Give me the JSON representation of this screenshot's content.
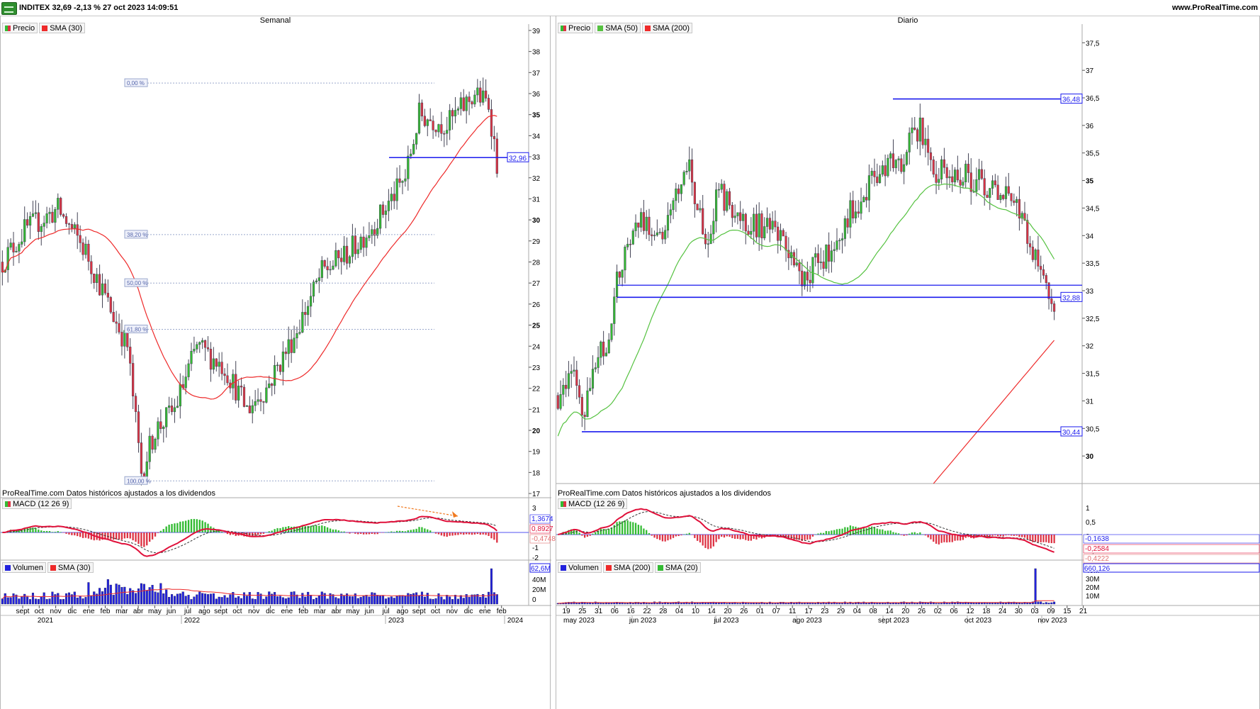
{
  "header": {
    "title": "INDITEX 32,69 -2,13 % 27 oct 2023 14:09:51",
    "site": "www.ProRealTime.com"
  },
  "colors": {
    "up": "#33bb33",
    "down": "#dd3344",
    "sma": "#ee2a2a",
    "sma50": "#55c240",
    "level": "#1a1aee",
    "fib": "#9aa7cc",
    "vol": "#2222dd"
  },
  "note": "ProRealTime.com Datos históricos ajustados a los dividendos",
  "weekly": {
    "title": "Semanal",
    "legend": [
      "Precio",
      "SMA (30)"
    ],
    "price_ticks": [
      "39",
      "38",
      "37",
      "36",
      "35",
      "34",
      "33",
      "32",
      "31",
      "30",
      "29",
      "28",
      "27",
      "26",
      "25",
      "24",
      "23",
      "22",
      "21",
      "20",
      "19",
      "18",
      "17"
    ],
    "fib": [
      {
        "label": "0,00 %",
        "value": 36.5
      },
      {
        "label": "38,20 %",
        "value": 29.3
      },
      {
        "label": "50,00 %",
        "value": 27.0
      },
      {
        "label": "61,80 %",
        "value": 24.8
      },
      {
        "label": "100,00 %",
        "value": 17.6
      }
    ],
    "level": {
      "label": "32,96",
      "value": 32.96
    },
    "macd": {
      "legend": "MACD (12 26 9)",
      "ticks": [
        "3",
        "2",
        "1",
        "0",
        "-1",
        "-2"
      ],
      "values": [
        "1,3674",
        "0,8927",
        "-0,4748"
      ]
    },
    "volume": {
      "legend": [
        "Volumen",
        "SMA (30)"
      ],
      "ticks": [
        "40M",
        "20M",
        "0"
      ],
      "value": "62,6M"
    },
    "month_labels": [
      "sept",
      "oct",
      "nov",
      "dic",
      "ene",
      "feb",
      "mar",
      "abr",
      "may",
      "jun",
      "jul",
      "ago",
      "sept",
      "oct",
      "nov",
      "dic",
      "ene",
      "feb",
      "mar",
      "abr",
      "may",
      "jun",
      "jul",
      "ago",
      "sept",
      "oct",
      "nov",
      "dic",
      "ene",
      "feb"
    ],
    "years": [
      "2021",
      "2022",
      "2023",
      "2024"
    ]
  },
  "daily": {
    "title": "Diario",
    "legend": [
      "Precio",
      "SMA (50)",
      "SMA (200)"
    ],
    "price_ticks": [
      "37,5",
      "37",
      "36,5",
      "36",
      "35,5",
      "35",
      "34,5",
      "34",
      "33,5",
      "33",
      "32,5",
      "32",
      "31,5",
      "31",
      "30,5",
      "30"
    ],
    "levels": [
      {
        "label": "36,48",
        "value": 36.48
      },
      {
        "label": "32,88",
        "value": 32.88
      },
      {
        "label": "30,44",
        "value": 30.44
      }
    ],
    "macd": {
      "legend": "MACD (12 26 9)",
      "ticks": [
        "1",
        "0,5",
        "0",
        "-0,5"
      ],
      "values": [
        "-0,1638",
        "-0,2584",
        "-0,4222"
      ]
    },
    "volume": {
      "legend": [
        "Volumen",
        "SMA (200)",
        "SMA (20)"
      ],
      "ticks": [
        "40M",
        "30M",
        "20M",
        "10M"
      ],
      "value": "660,126"
    },
    "day_labels": [
      "19",
      "25",
      "31",
      "06",
      "16",
      "22",
      "28",
      "04",
      "10",
      "14",
      "20",
      "26",
      "01",
      "07",
      "11",
      "17",
      "23",
      "29",
      "04",
      "08",
      "14",
      "20",
      "26",
      "02",
      "06",
      "12",
      "18",
      "24",
      "30",
      "03",
      "09",
      "15",
      "21"
    ],
    "months": [
      "may 2023",
      "jun 2023",
      "jul 2023",
      "ago 2023",
      "sept 2023",
      "oct 2023",
      "nov 2023"
    ]
  },
  "chart_data": [
    {
      "type": "candlestick",
      "title": "Semanal",
      "series": [
        {
          "name": "Precio"
        },
        {
          "name": "SMA (30)"
        }
      ],
      "ylim": [
        17,
        39
      ],
      "anchors": [
        [
          0,
          28
        ],
        [
          8,
          29.5
        ],
        [
          20,
          30.5
        ],
        [
          30,
          28.5
        ],
        [
          38,
          26
        ],
        [
          45,
          24
        ],
        [
          50,
          18
        ],
        [
          55,
          20
        ],
        [
          62,
          21
        ],
        [
          70,
          24
        ],
        [
          80,
          23
        ],
        [
          88,
          21
        ],
        [
          95,
          22
        ],
        [
          105,
          24.5
        ],
        [
          115,
          27.5
        ],
        [
          125,
          28.5
        ],
        [
          135,
          30
        ],
        [
          145,
          32
        ],
        [
          150,
          35
        ],
        [
          160,
          34.5
        ],
        [
          170,
          36
        ],
        [
          175,
          35.5
        ],
        [
          178,
          32.7
        ]
      ]
    },
    {
      "type": "candlestick",
      "title": "Diario",
      "series": [
        {
          "name": "Precio"
        },
        {
          "name": "SMA (50)"
        },
        {
          "name": "SMA (200)"
        }
      ],
      "ylim": [
        29.5,
        37.8
      ],
      "anchors": [
        [
          0,
          31.1
        ],
        [
          5,
          31.5
        ],
        [
          10,
          30.8
        ],
        [
          15,
          31.8
        ],
        [
          20,
          32.2
        ],
        [
          22,
          33.2
        ],
        [
          30,
          34.3
        ],
        [
          40,
          34.0
        ],
        [
          48,
          35.4
        ],
        [
          55,
          33.8
        ],
        [
          60,
          34.8
        ],
        [
          68,
          34.3
        ],
        [
          75,
          34.2
        ],
        [
          82,
          34.0
        ],
        [
          90,
          33.2
        ],
        [
          100,
          33.6
        ],
        [
          110,
          34.5
        ],
        [
          120,
          35.2
        ],
        [
          128,
          35.4
        ],
        [
          135,
          36.0
        ],
        [
          140,
          35.2
        ],
        [
          150,
          35.1
        ],
        [
          160,
          34.9
        ],
        [
          170,
          34.8
        ],
        [
          176,
          33.8
        ],
        [
          180,
          33.5
        ],
        [
          185,
          32.7
        ]
      ]
    },
    {
      "type": "bar",
      "title": "MACD (12 26 9)",
      "values": [
        1.3674,
        0.8927,
        -0.4748
      ]
    },
    {
      "type": "bar",
      "title": "MACD (12 26 9)",
      "values": [
        -0.1638,
        -0.2584,
        -0.4222
      ]
    }
  ]
}
